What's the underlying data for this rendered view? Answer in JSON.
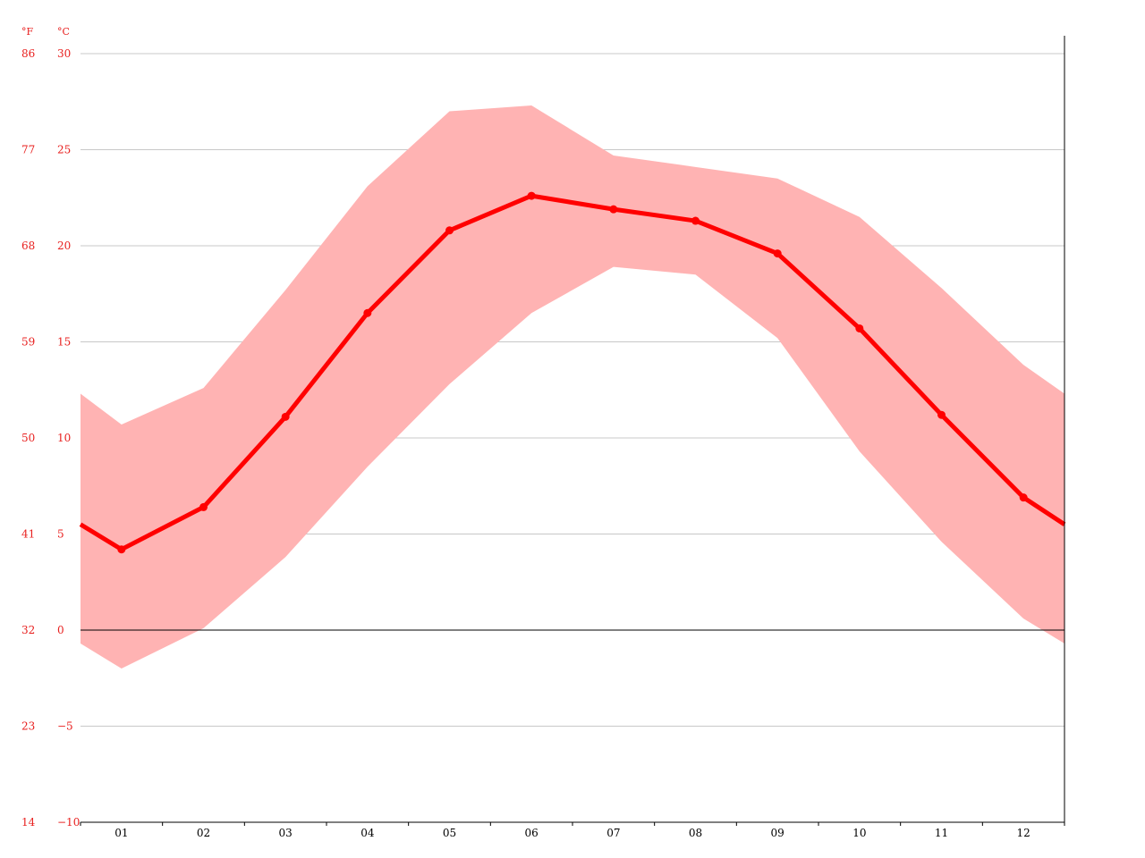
{
  "chart_data": {
    "type": "line",
    "categories": [
      "01",
      "02",
      "03",
      "04",
      "05",
      "06",
      "07",
      "08",
      "09",
      "10",
      "11",
      "12"
    ],
    "series": [
      {
        "values": [
          4.2,
          6.4,
          11.1,
          16.5,
          20.8,
          22.6,
          21.9,
          21.3,
          19.6,
          15.7,
          11.2,
          6.9
        ],
        "role": "mean"
      },
      {
        "values": [
          10.7,
          12.6,
          17.7,
          23.1,
          27.0,
          27.3,
          24.7,
          24.1,
          23.5,
          21.5,
          17.8,
          13.8
        ],
        "role": "band-upper"
      },
      {
        "values": [
          -2.0,
          0.1,
          3.8,
          8.5,
          12.8,
          16.5,
          18.9,
          18.5,
          15.2,
          9.3,
          4.6,
          0.6
        ],
        "role": "band-lower"
      }
    ],
    "edges": {
      "mean_left": 5.5,
      "mean_right": 5.5,
      "upper_left": 12.3,
      "upper_right": 12.3,
      "lower_left": -0.7,
      "lower_right": -0.7
    },
    "ylim": [
      -10,
      30
    ],
    "y_ticks_c": [
      "30",
      "25",
      "20",
      "15",
      "10",
      "5",
      "0",
      "−5",
      "−10"
    ],
    "y_ticks_f": [
      "86",
      "77",
      "68",
      "59",
      "50",
      "41",
      "32",
      "23",
      "14"
    ],
    "y_unit_f": "°F",
    "y_unit_c": "°C",
    "grid": true,
    "colors": {
      "line": "#ff0000",
      "band": "#ffb3b3",
      "axis_text": "#e8201f",
      "grid": "#c8c8c8",
      "zero": "#000000"
    }
  }
}
